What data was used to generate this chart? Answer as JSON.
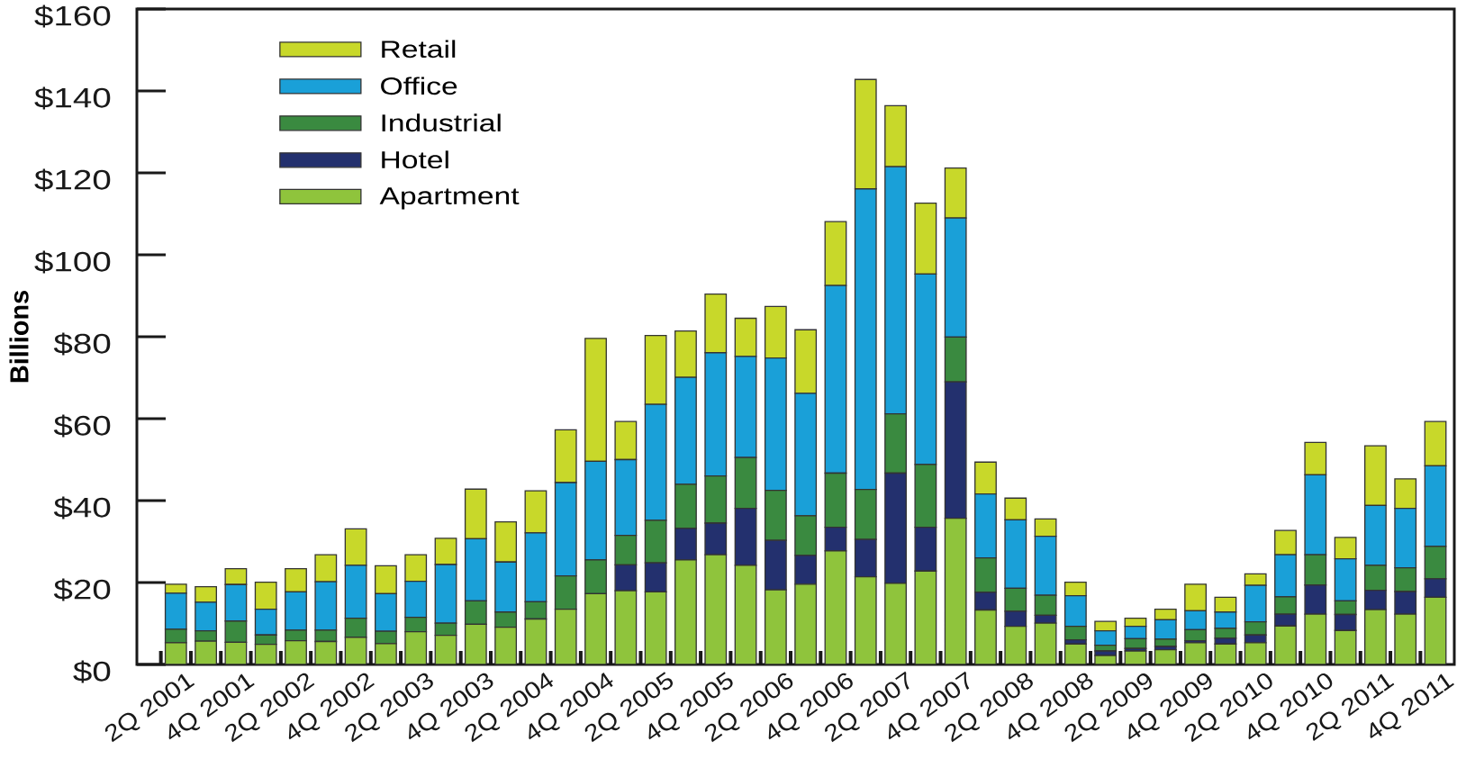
{
  "chart_data": {
    "type": "bar",
    "stacked": true,
    "ylabel": "Billions",
    "categories": [
      "2Q 2001",
      null,
      "4Q 2001",
      null,
      "2Q 2002",
      null,
      "4Q 2002",
      null,
      "2Q 2003",
      null,
      "4Q 2003",
      null,
      "2Q 2004",
      null,
      "4Q 2004",
      null,
      "2Q 2005",
      null,
      "4Q 2005",
      null,
      "2Q 2006",
      null,
      "4Q 2006",
      null,
      "2Q 2007",
      null,
      "4Q 2007",
      null,
      "2Q 2008",
      null,
      "4Q 2008",
      null,
      "2Q 2009",
      null,
      "4Q 2009",
      null,
      "2Q 2010",
      null,
      "4Q 2010",
      null,
      "2Q 2011",
      null,
      "4Q 2011"
    ],
    "series": [
      {
        "name": "Apartment",
        "color": "#8fc43c",
        "values": [
          5.3,
          5.7,
          5.4,
          4.9,
          5.8,
          5.6,
          6.6,
          5.1,
          8.0,
          7.1,
          9.8,
          9.1,
          11.1,
          13.5,
          17.3,
          18.0,
          17.7,
          25.5,
          26.8,
          24.2,
          18.2,
          19.6,
          27.7,
          21.4,
          19.8,
          22.8,
          35.7,
          13.3,
          9.3,
          10.1,
          5.0,
          2.2,
          3.3,
          3.6,
          5.3,
          5.0,
          5.3,
          9.4,
          12.3,
          8.3,
          13.4,
          12.3,
          16.4
        ]
      },
      {
        "name": "Hotel",
        "color": "#23306e",
        "values": [
          0,
          0,
          0,
          0,
          0,
          0,
          0,
          0,
          0,
          0,
          0,
          0,
          0,
          0,
          0,
          6.3,
          7.1,
          7.7,
          7.7,
          13.9,
          12.1,
          7.0,
          5.8,
          9.1,
          26.9,
          10.7,
          33.3,
          4.3,
          3.7,
          1.9,
          1.0,
          1.1,
          0.6,
          0.8,
          0.5,
          1.4,
          1.9,
          2.9,
          7.1,
          3.9,
          4.7,
          5.5,
          4.5
        ]
      },
      {
        "name": "Industrial",
        "color": "#3a8a40",
        "values": [
          3.3,
          2.5,
          5.2,
          2.3,
          2.6,
          2.8,
          4.7,
          3.0,
          3.5,
          3.0,
          5.7,
          3.7,
          4.2,
          8.1,
          8.2,
          7.2,
          10.4,
          10.8,
          11.5,
          12.4,
          12.2,
          9.7,
          13.2,
          12.2,
          14.5,
          15.3,
          10.9,
          8.4,
          5.6,
          4.9,
          3.3,
          1.4,
          2.4,
          1.8,
          2.7,
          2.4,
          3.2,
          4.2,
          7.4,
          3.3,
          6.1,
          5.8,
          7.9
        ]
      },
      {
        "name": "Office",
        "color": "#1aa0d8",
        "values": [
          8.8,
          7.0,
          8.9,
          6.3,
          9.3,
          11.8,
          12.9,
          9.2,
          8.8,
          14.3,
          15.2,
          12.2,
          16.8,
          22.8,
          24.1,
          18.5,
          28.3,
          26.1,
          30.1,
          24.7,
          32.3,
          29.9,
          45.8,
          73.4,
          60.3,
          46.5,
          29.1,
          15.6,
          16.7,
          14.4,
          7.5,
          3.5,
          3.0,
          4.7,
          4.6,
          4.0,
          8.9,
          10.3,
          19.5,
          10.3,
          14.6,
          14.5,
          19.7
        ]
      },
      {
        "name": "Retail",
        "color": "#c8d82a",
        "values": [
          2.2,
          3.8,
          3.9,
          6.6,
          5.7,
          6.6,
          8.9,
          6.8,
          6.5,
          6.4,
          12.1,
          9.8,
          10.3,
          12.9,
          30.0,
          9.3,
          16.8,
          11.3,
          14.3,
          9.3,
          12.6,
          15.5,
          15.6,
          26.7,
          14.9,
          17.3,
          12.2,
          7.8,
          5.3,
          4.2,
          3.3,
          2.3,
          2.0,
          2.6,
          6.5,
          3.6,
          2.8,
          5.9,
          7.9,
          5.2,
          14.6,
          7.2,
          10.8
        ]
      }
    ],
    "ylim": [
      0,
      160
    ],
    "yticks": [
      {
        "value": 0,
        "label": "$0"
      },
      {
        "value": 20,
        "label": "$20"
      },
      {
        "value": 40,
        "label": "$40"
      },
      {
        "value": 60,
        "label": "$60"
      },
      {
        "value": 80,
        "label": "$80"
      },
      {
        "value": 100,
        "label": "$100"
      },
      {
        "value": 120,
        "label": "$120"
      },
      {
        "value": 140,
        "label": "$140"
      },
      {
        "value": 160,
        "label": "$160"
      }
    ],
    "legend": "top left",
    "grid": false
  }
}
